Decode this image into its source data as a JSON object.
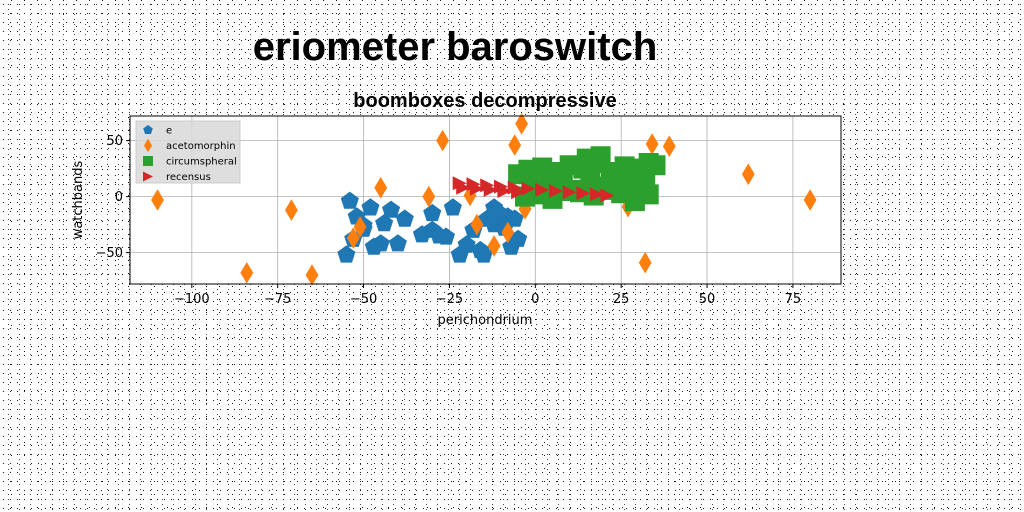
{
  "chart_data": {
    "type": "scatter",
    "suptitle": "eriometer baroswitch",
    "title": "boomboxes decompressive",
    "xlabel": "perichondrium",
    "ylabel": "watchbands",
    "xlim": [
      -118,
      89
    ],
    "ylim": [
      -78,
      72
    ],
    "xticks": [
      -100,
      -75,
      -50,
      -25,
      0,
      25,
      50,
      75
    ],
    "xtick_labels": [
      "−100",
      "−75",
      "−50",
      "−25",
      "0",
      "25",
      "50",
      "75"
    ],
    "yticks": [
      -50,
      0,
      50
    ],
    "ytick_labels": [
      "−50",
      "0",
      "50"
    ],
    "grid": true,
    "legend_position": "upper-left",
    "series": [
      {
        "name": "e",
        "marker": "pentagon",
        "color": "#1f77b4",
        "x": [
          -54,
          -48,
          -44,
          -50,
          -53,
          -55,
          -42,
          -38,
          -52,
          -45,
          -47,
          -40,
          -50,
          -30,
          -28,
          -24,
          -30,
          -33,
          -26,
          -18,
          -14,
          -10,
          -16,
          -12,
          -8,
          -6,
          -20,
          -7,
          -5,
          -15,
          -12,
          -22,
          -9
        ],
        "y": [
          -4,
          -10,
          -24,
          -29,
          -38,
          -52,
          -12,
          -20,
          -18,
          -42,
          -45,
          -42,
          -26,
          -30,
          -35,
          -10,
          -15,
          -34,
          -36,
          -30,
          -20,
          -16,
          -48,
          -25,
          -18,
          -20,
          -43,
          -45,
          -38,
          -52,
          -10,
          -52,
          -28
        ]
      },
      {
        "name": "acetomorphin",
        "marker": "diamond",
        "color": "#ff7f0e",
        "x": [
          -110,
          -84,
          -71,
          -65,
          -53,
          -51,
          -45,
          -31,
          -27,
          -19,
          -17,
          -12,
          -6,
          -4,
          -3,
          27,
          32,
          34,
          39,
          62,
          80,
          -8
        ],
        "y": [
          -3,
          -68,
          -12,
          -70,
          -37,
          -27,
          8,
          0,
          50,
          1,
          -25,
          -44,
          46,
          65,
          -11,
          -9,
          -59,
          47,
          45,
          20,
          -3,
          -32
        ]
      },
      {
        "name": "circumspheral",
        "marker": "square",
        "color": "#2ca02c",
        "x": [
          -5,
          -2,
          2,
          6,
          10,
          14,
          18,
          22,
          26,
          30,
          33,
          35,
          0,
          4,
          8,
          12,
          16,
          20,
          24,
          28,
          32,
          -3,
          1,
          5,
          9,
          13,
          17,
          21,
          25,
          29,
          33,
          15,
          19,
          31
        ],
        "y": [
          20,
          24,
          26,
          22,
          28,
          25,
          30,
          22,
          27,
          25,
          30,
          28,
          8,
          10,
          12,
          6,
          14,
          9,
          13,
          11,
          15,
          0,
          2,
          -2,
          5,
          4,
          1,
          6,
          3,
          -4,
          2,
          34,
          36,
          20
        ]
      },
      {
        "name": "recensus",
        "marker": "triangle-right",
        "color": "#d62728",
        "x": [
          -22,
          -18,
          -14,
          -10,
          -6,
          -2,
          2,
          6,
          10,
          14,
          18,
          21,
          -21,
          -17,
          -13,
          -9,
          -5
        ],
        "y": [
          12,
          11,
          10,
          9,
          8,
          7,
          6,
          5,
          4,
          3,
          2,
          1,
          8,
          7,
          6,
          5,
          4
        ]
      }
    ]
  }
}
